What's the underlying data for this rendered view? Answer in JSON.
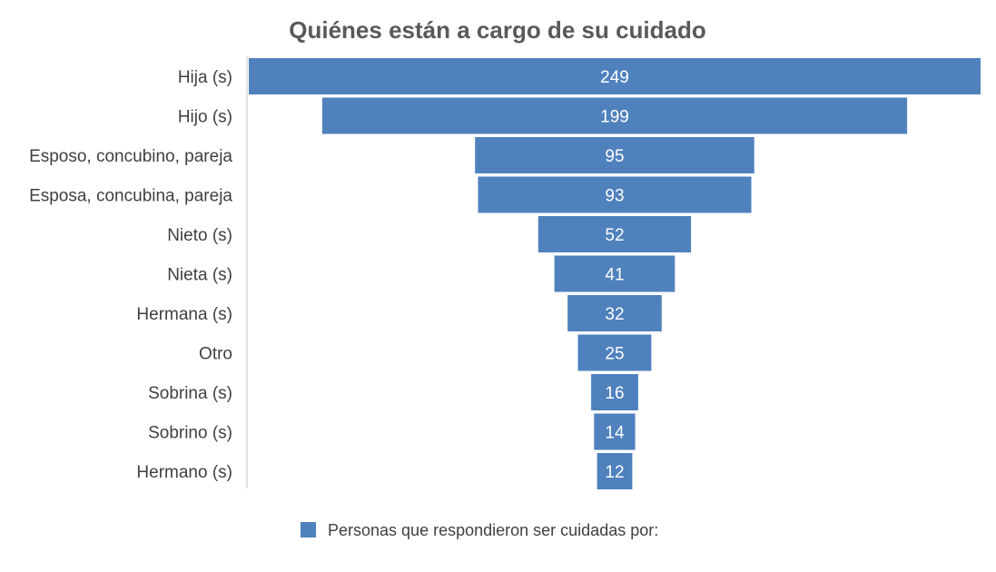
{
  "chart_data": {
    "type": "bar",
    "orientation": "horizontal-funnel",
    "title": "Quiénes están a cargo de su cuidado",
    "categories": [
      "Hija (s)",
      "Hijo (s)",
      "Esposo, concubino, pareja",
      "Esposa, concubina, pareja",
      "Nieto (s)",
      "Nieta (s)",
      "Hermana (s)",
      "Otro",
      "Sobrina (s)",
      "Sobrino (s)",
      "Hermano (s)"
    ],
    "series": [
      {
        "name": "Personas que respondieron ser cuidadas por:",
        "values": [
          249,
          199,
          95,
          93,
          52,
          41,
          32,
          25,
          16,
          14,
          12
        ],
        "color": "#4F81BD"
      }
    ],
    "data_labels": true,
    "legend_position": "bottom",
    "xlabel": "",
    "ylabel": ""
  },
  "colors": {
    "bar": "#4F81BD",
    "axis": "#D9D9D9"
  }
}
